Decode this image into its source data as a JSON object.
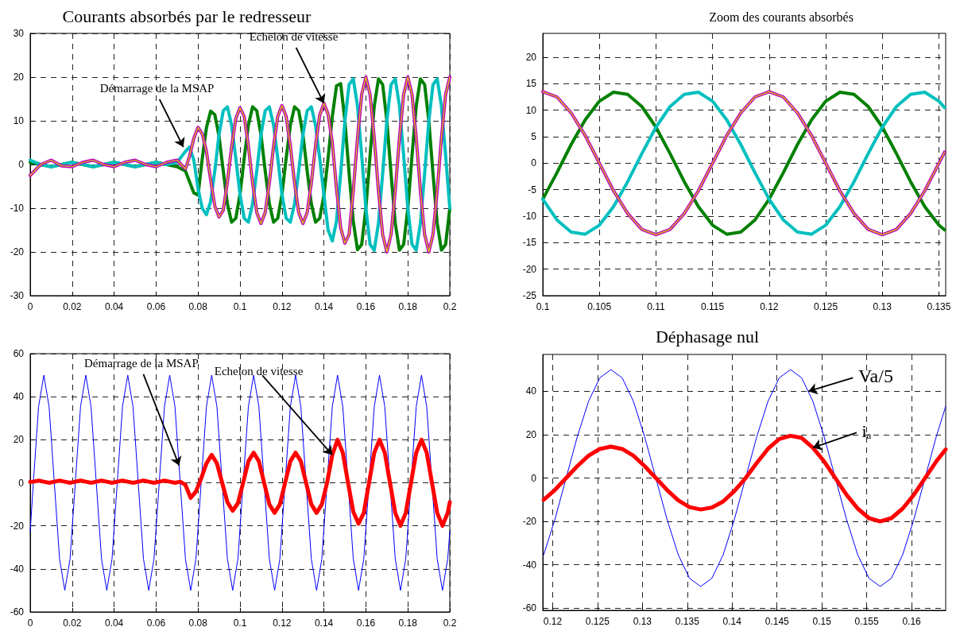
{
  "chart_data": [
    {
      "type": "line",
      "title": "Courants absorbés par le redresseur",
      "xlim": [
        0,
        0.2
      ],
      "xticks": [
        0,
        0.02,
        0.04,
        0.06,
        0.08,
        0.1,
        0.12,
        0.14,
        0.16,
        0.18,
        0.2
      ],
      "ylim": [
        -30,
        30
      ],
      "yticks": [
        -30,
        -20,
        -10,
        0,
        10,
        20,
        30
      ],
      "grid": true,
      "marker": "none",
      "line_style": "solid",
      "x": [
        0,
        0.005,
        0.01,
        0.015,
        0.02,
        0.025,
        0.03,
        0.035,
        0.04,
        0.045,
        0.05,
        0.055,
        0.06,
        0.065,
        0.07,
        0.074,
        0.076,
        0.078,
        0.08,
        0.082,
        0.084,
        0.086,
        0.088,
        0.09,
        0.092,
        0.094,
        0.096,
        0.098,
        0.1,
        0.102,
        0.104,
        0.106,
        0.108,
        0.11,
        0.112,
        0.114,
        0.116,
        0.118,
        0.12,
        0.122,
        0.124,
        0.126,
        0.128,
        0.13,
        0.132,
        0.134,
        0.136,
        0.138,
        0.14,
        0.142,
        0.144,
        0.146,
        0.148,
        0.15,
        0.152,
        0.154,
        0.156,
        0.158,
        0.16,
        0.162,
        0.164,
        0.166,
        0.168,
        0.17,
        0.172,
        0.174,
        0.176,
        0.178,
        0.18,
        0.182,
        0.184,
        0.186,
        0.188,
        0.19,
        0.192,
        0.194,
        0.196,
        0.198,
        0.2
      ],
      "series": [
        {
          "color": "#008000",
          "values": [
            0.5,
            0,
            -0.5,
            0,
            0.5,
            0,
            -0.5,
            0,
            0.5,
            0,
            -0.5,
            0,
            0.5,
            0,
            -0.5,
            -1.5,
            -4,
            -6.5,
            -7,
            1.3,
            8.4,
            12.2,
            11.4,
            6.5,
            -1.4,
            -9,
            -13.2,
            -12.3,
            -6.8,
            1.4,
            9,
            13.2,
            12.3,
            6.8,
            -1.4,
            -9,
            -13.2,
            -12.3,
            -6.8,
            1.4,
            9,
            13.2,
            12.3,
            6.8,
            -1.4,
            -9,
            -13.2,
            -12.3,
            -7,
            1.5,
            11,
            18,
            18.5,
            10,
            -2,
            -13,
            -19.5,
            -18.3,
            -10,
            2.1,
            13.4,
            19.6,
            18.3,
            10,
            -2.1,
            -13.4,
            -19.6,
            -18.3,
            -10,
            2.1,
            13.4,
            19.6,
            18.3,
            10,
            -2.1,
            -13.4,
            -19.6,
            -18.3,
            -10
          ]
        },
        {
          "color": "#00bfbf",
          "values": [
            1,
            0,
            -0.5,
            0,
            0.5,
            0,
            -0.5,
            0,
            0.5,
            0,
            -0.5,
            0,
            0.5,
            0,
            0.5,
            3,
            4,
            1,
            -5.5,
            -10,
            -11.5,
            -8.5,
            -1.4,
            6.8,
            12.3,
            13.2,
            9,
            1.4,
            -6.8,
            -12.3,
            -13.2,
            -9,
            -1.4,
            6.8,
            12.3,
            13.2,
            9,
            1.4,
            -6.8,
            -12.3,
            -13.2,
            -9,
            -1.4,
            6.8,
            12.3,
            13.2,
            9,
            1.4,
            -7,
            -15,
            -17.5,
            -13,
            -2,
            10,
            18.3,
            19.6,
            13.4,
            2.1,
            -10,
            -18.3,
            -19.6,
            -13.4,
            -2.1,
            10,
            18.3,
            19.6,
            13.4,
            2.1,
            -10,
            -18.3,
            -19.6,
            -13.4,
            -2.1,
            10,
            18.3,
            19.6,
            13.4,
            2.1,
            -10
          ]
        },
        {
          "color": "#bf00bf",
          "values": [
            -2.5,
            0,
            1,
            -0.3,
            -0.5,
            0.5,
            1,
            0,
            -0.5,
            0.5,
            1,
            0,
            -0.5,
            0.5,
            1,
            -1,
            2,
            6,
            8.5,
            7,
            3,
            -3.5,
            -9.5,
            -12,
            -10.5,
            -4,
            4,
            10.5,
            13,
            11,
            4.2,
            -4.2,
            -11,
            -13.5,
            -11,
            -4.2,
            4.2,
            11,
            13.5,
            11,
            4.2,
            -4.2,
            -11,
            -13.5,
            -11,
            -4.2,
            4.3,
            11.3,
            14,
            11.5,
            5,
            -5.5,
            -14.5,
            -18,
            -16,
            -6,
            6,
            16,
            20,
            16,
            6,
            -6,
            -16,
            -20,
            -16,
            -6,
            6,
            16,
            20,
            16,
            6,
            -6,
            -16,
            -20,
            -16,
            -6,
            6,
            16,
            20
          ]
        },
        {
          "color": "#d4d400",
          "values": [
            -2.5,
            0,
            1,
            -0.3,
            -0.5,
            0.5,
            1,
            0,
            -0.5,
            0.5,
            1,
            0,
            -0.5,
            0.5,
            1,
            -1,
            2,
            6,
            8.5,
            7,
            3,
            -3.5,
            -9.5,
            -12,
            -10.5,
            -4,
            4,
            10.5,
            13,
            11,
            4.2,
            -4.2,
            -11,
            -13.5,
            -11,
            -4.2,
            4.2,
            11,
            13.5,
            11,
            4.2,
            -4.2,
            -11,
            -13.5,
            -11,
            -4.2,
            4.3,
            11.3,
            14,
            11.5,
            5,
            -5.5,
            -14.5,
            -18,
            -16,
            -6,
            6,
            16,
            20,
            16,
            6,
            -6,
            -16,
            -20,
            -16,
            -6,
            6,
            16,
            20,
            16,
            6,
            -6,
            -16,
            -20,
            -16,
            -6,
            6,
            16,
            20
          ]
        }
      ],
      "annotations": [
        {
          "text": "Démarrage de la MSAP",
          "x": 0.073,
          "y": 4
        },
        {
          "text": "Echelon de vitesse",
          "x": 0.14,
          "y": 14
        }
      ]
    },
    {
      "type": "line",
      "title": "Zoom des courants absorbés",
      "xlim": [
        0.1,
        0.1356
      ],
      "xticks": [
        0.1,
        0.105,
        0.11,
        0.115,
        0.12,
        0.125,
        0.13,
        0.135
      ],
      "ylim": [
        -25,
        24.5
      ],
      "yticks": [
        -25,
        -20,
        -15,
        -10,
        -5,
        0,
        5,
        10,
        15,
        20
      ],
      "grid": true,
      "marker": "none",
      "line_style": "solid",
      "x": [
        0.1,
        0.10125,
        0.1025,
        0.10375,
        0.105,
        0.10625,
        0.1075,
        0.10875,
        0.11,
        0.11125,
        0.1125,
        0.11375,
        0.115,
        0.11625,
        0.1175,
        0.11875,
        0.12,
        0.12125,
        0.1225,
        0.12375,
        0.125,
        0.12625,
        0.1275,
        0.12875,
        0.13,
        0.13125,
        0.1325,
        0.13375,
        0.135,
        0.1355
      ],
      "series": [
        {
          "color": "#008000",
          "values": [
            -6.8,
            -1.8,
            3.5,
            8.2,
            11.7,
            13.4,
            13.0,
            10.7,
            6.8,
            1.8,
            -3.5,
            -8.2,
            -11.7,
            -13.4,
            -13.0,
            -10.7,
            -6.8,
            -1.8,
            3.5,
            8.2,
            11.7,
            13.4,
            13.0,
            10.7,
            6.8,
            1.8,
            -3.5,
            -8.2,
            -11.7,
            -12.6
          ]
        },
        {
          "color": "#00bfbf",
          "values": [
            -6.8,
            -10.7,
            -13.0,
            -13.4,
            -11.7,
            -8.2,
            -3.5,
            1.8,
            6.8,
            10.7,
            13.0,
            13.4,
            11.7,
            8.2,
            3.5,
            -1.8,
            -6.8,
            -10.7,
            -13.0,
            -13.4,
            -11.7,
            -8.2,
            -3.5,
            1.8,
            6.8,
            10.7,
            13.0,
            13.4,
            11.7,
            10.5
          ]
        },
        {
          "color": "#bf00bf",
          "values": [
            13.5,
            12.5,
            9.5,
            5.2,
            0,
            -5.2,
            -9.5,
            -12.5,
            -13.5,
            -12.5,
            -9.5,
            -5.2,
            0,
            5.2,
            9.5,
            12.5,
            13.5,
            12.5,
            9.5,
            5.2,
            0,
            -5.2,
            -9.5,
            -12.5,
            -13.5,
            -12.5,
            -9.5,
            -5.2,
            0,
            2.1
          ]
        },
        {
          "color": "#d4d400",
          "values": [
            13.5,
            12.5,
            9.5,
            5.2,
            0,
            -5.2,
            -9.5,
            -12.5,
            -13.5,
            -12.5,
            -9.5,
            -5.2,
            0,
            5.2,
            9.5,
            12.5,
            13.5,
            12.5,
            9.5,
            5.2,
            0,
            -5.2,
            -9.5,
            -12.5,
            -13.5,
            -12.5,
            -9.5,
            -5.2,
            0,
            2.1
          ]
        }
      ]
    },
    {
      "type": "line",
      "xlim": [
        0,
        0.2
      ],
      "xticks": [
        0,
        0.02,
        0.04,
        0.06,
        0.08,
        0.1,
        0.12,
        0.14,
        0.16,
        0.18,
        0.2
      ],
      "ylim": [
        -60,
        60
      ],
      "yticks": [
        -60,
        -40,
        -20,
        0,
        20,
        40,
        60
      ],
      "grid": true,
      "marker": "none",
      "line_style": "solid",
      "x": [
        0,
        0.0015,
        0.004,
        0.0065,
        0.009,
        0.0115,
        0.014,
        0.0165,
        0.019,
        0.0215,
        0.024,
        0.0265,
        0.029,
        0.0315,
        0.034,
        0.0365,
        0.039,
        0.0415,
        0.044,
        0.0465,
        0.049,
        0.0515,
        0.054,
        0.0565,
        0.059,
        0.0615,
        0.064,
        0.0665,
        0.069,
        0.0715,
        0.074,
        0.0765,
        0.079,
        0.0815,
        0.084,
        0.0865,
        0.089,
        0.0915,
        0.094,
        0.0965,
        0.099,
        0.1015,
        0.104,
        0.1065,
        0.109,
        0.1115,
        0.114,
        0.1165,
        0.119,
        0.1215,
        0.124,
        0.1265,
        0.129,
        0.1315,
        0.134,
        0.1365,
        0.139,
        0.1415,
        0.144,
        0.1465,
        0.149,
        0.1515,
        0.154,
        0.1565,
        0.159,
        0.1615,
        0.164,
        0.1665,
        0.169,
        0.1715,
        0.174,
        0.1765,
        0.179,
        0.1815,
        0.184,
        0.1865,
        0.189,
        0.1915,
        0.194,
        0.1965,
        0.199,
        0.2
      ],
      "series": [
        {
          "color": "#0000ff",
          "values": [
            -22.7,
            0,
            35.4,
            50,
            35.4,
            0,
            -35.4,
            -50,
            -35.4,
            0,
            35.4,
            50,
            35.4,
            0,
            -35.4,
            -50,
            -35.4,
            0,
            35.4,
            50,
            35.4,
            0,
            -35.4,
            -50,
            -35.4,
            0,
            35.4,
            50,
            35.4,
            0,
            -35.4,
            -50,
            -35.4,
            0,
            35.4,
            50,
            35.4,
            0,
            -35.4,
            -50,
            -35.4,
            0,
            35.4,
            50,
            35.4,
            0,
            -35.4,
            -50,
            -35.4,
            0,
            35.4,
            50,
            35.4,
            0,
            -35.4,
            -50,
            -35.4,
            0,
            35.4,
            50,
            35.4,
            0,
            -35.4,
            -50,
            -35.4,
            0,
            35.4,
            50,
            35.4,
            0,
            -35.4,
            -50,
            -35.4,
            0,
            35.4,
            50,
            35.4,
            0,
            -35.4,
            -50,
            -35.4,
            -22.7
          ]
        },
        {
          "color": "#ff0000",
          "values": [
            0.5,
            0.5,
            1,
            0.5,
            0,
            0.5,
            1,
            0.5,
            0,
            0.5,
            1,
            0.5,
            0,
            0.5,
            1,
            0.5,
            0,
            0.5,
            1,
            0.5,
            0,
            0.5,
            1,
            0.5,
            0,
            0.5,
            1,
            0.5,
            0,
            0.5,
            -1,
            -7,
            -4,
            2,
            9,
            13,
            9,
            0,
            -9,
            -13,
            -9.5,
            0,
            10,
            14,
            10,
            0,
            -10,
            -14,
            -10,
            0,
            10,
            14,
            10,
            0,
            -10,
            -14,
            -10,
            0,
            13,
            20,
            14,
            0,
            -13.5,
            -19,
            -14,
            0,
            14,
            20,
            14,
            0,
            -14,
            -20,
            -14,
            0,
            14,
            20,
            14,
            0,
            -14,
            -20,
            -14,
            -9
          ]
        }
      ],
      "annotations": [
        {
          "text": "Démarrage de la MSAP",
          "x": 0.071,
          "y": 8
        },
        {
          "text": "Echelon de vitesse",
          "x": 0.144,
          "y": 13
        }
      ]
    },
    {
      "type": "line",
      "title": "Déphasage nul",
      "xlim": [
        0.1189,
        0.1638
      ],
      "xticks": [
        0.12,
        0.125,
        0.13,
        0.135,
        0.14,
        0.145,
        0.15,
        0.155,
        0.16
      ],
      "ylim": [
        -61,
        57
      ],
      "yticks": [
        -60,
        -40,
        -20,
        0,
        20,
        40
      ],
      "grid": true,
      "marker": "none",
      "line_style": "solid",
      "x": [
        0.119,
        0.12025,
        0.1215,
        0.12275,
        0.124,
        0.12525,
        0.1265,
        0.12775,
        0.129,
        0.13025,
        0.1315,
        0.13275,
        0.134,
        0.13525,
        0.1365,
        0.13775,
        0.139,
        0.14025,
        0.1415,
        0.14275,
        0.144,
        0.14525,
        0.1465,
        0.14775,
        0.149,
        0.15025,
        0.1515,
        0.15275,
        0.154,
        0.15525,
        0.1565,
        0.15775,
        0.159,
        0.16025,
        0.1615,
        0.16275,
        0.1638
      ],
      "series": [
        {
          "color": "#0000ff",
          "values": [
            -35.4,
            -19.1,
            0,
            19.1,
            35.4,
            46.2,
            50,
            46.2,
            35.4,
            19.1,
            0,
            -19.1,
            -35.4,
            -46.2,
            -50,
            -46.2,
            -35.4,
            -19.1,
            0,
            19.1,
            35.4,
            46.2,
            50,
            46.2,
            35.4,
            19.1,
            0,
            -19.1,
            -35.4,
            -46.2,
            -50,
            -46.2,
            -35.4,
            -19.1,
            0,
            19.1,
            33.1
          ]
        },
        {
          "color": "#ff0000",
          "values": [
            -10,
            -5.5,
            0,
            5.5,
            10.3,
            13.4,
            14.5,
            13.4,
            10.3,
            5.5,
            0,
            -5.5,
            -10.3,
            -13.4,
            -14.5,
            -13.6,
            -10.8,
            -6,
            0,
            7,
            13.5,
            18,
            19.5,
            18.5,
            14,
            7.7,
            0,
            -7.7,
            -14.1,
            -18.5,
            -20,
            -18.5,
            -14.1,
            -7.7,
            0,
            7.7,
            13.2
          ]
        }
      ],
      "annotations": [
        {
          "text": "Va/5",
          "x": 0.1485,
          "y": 40
        },
        {
          "text": "iₐ",
          "x": 0.149,
          "y": 14
        }
      ]
    }
  ]
}
